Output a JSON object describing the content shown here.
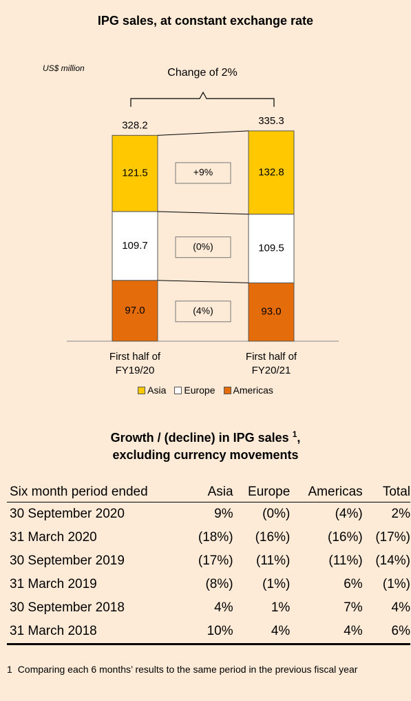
{
  "chart_data": {
    "type": "stacked_bar",
    "title": "IPG sales, at constant exchange rate",
    "unit_label": "US$ million",
    "annotation": "Change of 2%",
    "categories": [
      "First half of FY19/20",
      "First half of FY20/21"
    ],
    "totals": [
      328.2,
      335.3
    ],
    "series": [
      {
        "name": "Asia",
        "color": "#ffc800",
        "values": [
          121.5,
          132.8
        ],
        "change_label": "+9%"
      },
      {
        "name": "Europe",
        "color": "#ffffff",
        "values": [
          109.7,
          109.5
        ],
        "change_label": "(0%)"
      },
      {
        "name": "Americas",
        "color": "#e46c0a",
        "values": [
          97.0,
          93.0
        ],
        "value_labels": [
          "97.0",
          "93.0"
        ],
        "change_label": "(4%)"
      }
    ]
  },
  "table": {
    "title": {
      "text": "Growth / (decline) in IPG sales",
      "note": "1",
      "end": ",",
      "line2": "excluding currency movements"
    },
    "header": [
      "Six month period ended",
      "Asia",
      "Europe",
      "Americas",
      "Total"
    ],
    "rows": [
      [
        "30 September 2020",
        "9%",
        "(0%)",
        "(4%)",
        "2%"
      ],
      [
        "31 March 2020",
        "(18%)",
        "(16%)",
        "(16%)",
        "(17%)"
      ],
      [
        "30 September 2019",
        "(17%)",
        "(11%)",
        "(11%)",
        "(14%)"
      ],
      [
        "31 March 2019",
        "(8%)",
        "(1%)",
        "6%",
        "(1%)"
      ],
      [
        "30 September 2018",
        "4%",
        "1%",
        "7%",
        "4%"
      ],
      [
        "31 March 2018",
        "10%",
        "4%",
        "4%",
        "6%"
      ]
    ]
  },
  "footnote": {
    "number": "1",
    "text": "Comparing each 6 months’ results to the same period in the previous fiscal year"
  }
}
